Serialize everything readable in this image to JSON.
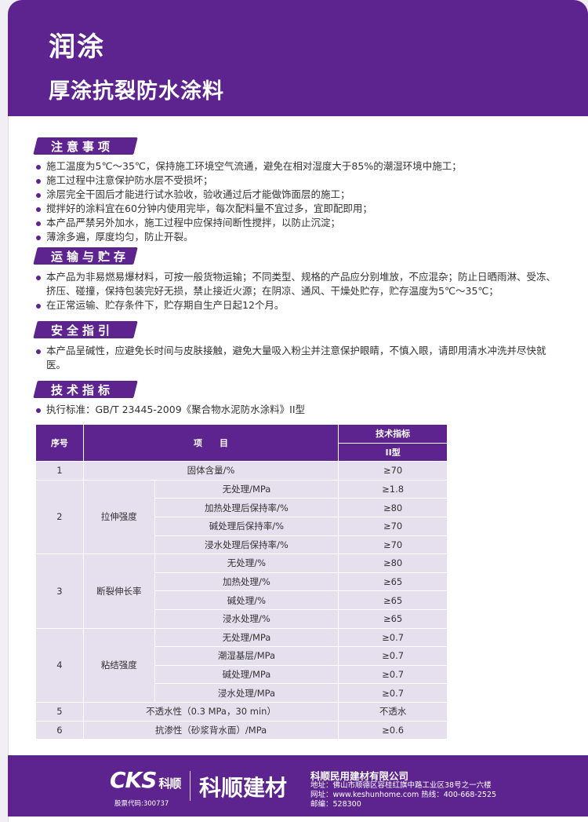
{
  "header": {
    "brand": "润涂",
    "product": "厚涂抗裂防水涂料"
  },
  "sections": [
    {
      "title": "注意事项",
      "items": [
        "施工温度为5℃～35℃，保持施工环境空气流通，避免在相对湿度大于85%的潮湿环境中施工；",
        "施工过程中注意保护防水层不受损坏；",
        "涂层完全干固后才能进行试水验收，验收通过后才能做饰面层的施工；",
        "搅拌好的涂料宜在60分钟内使用完毕，每次配料量不宜过多，宜即配即用；",
        "本产品严禁另外加水，施工过程中应保持间断性搅拌，以防止沉淀；",
        "薄涂多遍，厚度均匀，防止开裂。"
      ]
    },
    {
      "title": "运输与贮存",
      "items": [
        "本产品为非易燃易爆材料，可按一般货物运输；不同类型、规格的产品应分别堆放，不应混杂；防止日晒雨淋、受冻、挤压、碰撞，保持包装完好无损，禁止接近火源；在阴凉、通风、干燥处贮存，贮存温度为5℃～35℃；",
        "在正常运输、贮存条件下，贮存期自生产日起12个月。"
      ]
    },
    {
      "title": "安全指引",
      "items": [
        "本产品呈碱性，应避免长时间与皮肤接触，避免大量吸入粉尘并注意保护眼睛，不慎入眼，请即用清水冲洗并尽快就医。"
      ]
    },
    {
      "title": "技术指标",
      "items": [
        "执行标准：GB/T 23445-2009《聚合物水泥防水涂料》II型"
      ]
    }
  ],
  "table": {
    "headers": {
      "no": "序号",
      "item": "项　　目",
      "spec": "技术指标",
      "type": "II型"
    },
    "rows": [
      {
        "no": "1",
        "item": "固体含量/%",
        "value": "≥70"
      },
      {
        "no": "2",
        "group": "拉伸强度",
        "subs": [
          {
            "item": "无处理/MPa",
            "value": "≥1.8"
          },
          {
            "item": "加热处理后保持率/%",
            "value": "≥80"
          },
          {
            "item": "碱处理后保持率/%",
            "value": "≥70"
          },
          {
            "item": "浸水处理后保持率/%",
            "value": "≥70"
          }
        ]
      },
      {
        "no": "3",
        "group": "断裂伸长率",
        "subs": [
          {
            "item": "无处理/%",
            "value": "≥80"
          },
          {
            "item": "加热处理/%",
            "value": "≥65"
          },
          {
            "item": "碱处理/%",
            "value": "≥65"
          },
          {
            "item": "浸水处理/%",
            "value": "≥65"
          }
        ]
      },
      {
        "no": "4",
        "group": "粘结强度",
        "subs": [
          {
            "item": "无处理/MPa",
            "value": "≥0.7"
          },
          {
            "item": "潮湿基层/MPa",
            "value": "≥0.7"
          },
          {
            "item": "碱处理/MPa",
            "value": "≥0.7"
          },
          {
            "item": "浸水处理/MPa",
            "value": "≥0.7"
          }
        ]
      },
      {
        "no": "5",
        "item": "不透水性（0.3 MPa，30 min）",
        "value": "不透水"
      },
      {
        "no": "6",
        "item": "抗渗性（砂浆背水面）/MPa",
        "value": "≥0.6"
      }
    ]
  },
  "footer": {
    "logo": "CKS",
    "logo_cn": "科顺",
    "stock_code": "股票代码:300737",
    "brand": "科顺建材",
    "company": "科顺民用建材有限公司",
    "address": "地址：佛山市顺德区容桂红旗中路工业区38号之一六楼",
    "web_hotline": "网址：www.keshunhome.com  热线：400-668-2525",
    "postcode": "邮编：528300"
  },
  "colors": {
    "brand_purple": "#5d2490",
    "table_cell": "#e5dfee"
  }
}
